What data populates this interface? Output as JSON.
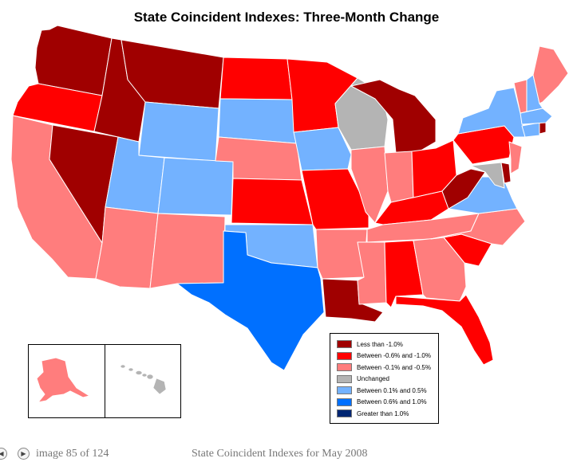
{
  "title": "State Coincident Indexes: Three-Month Change",
  "legend": [
    {
      "label": "Less than -1.0%",
      "color": "#a00000"
    },
    {
      "label": "Between -0.6% and -1.0%",
      "color": "#ff0000"
    },
    {
      "label": "Between -0.1% and -0.5%",
      "color": "#ff7d7d"
    },
    {
      "label": "Unchanged",
      "color": "#b4b4b4"
    },
    {
      "label": "Between 0.1% and 0.5%",
      "color": "#73b2ff"
    },
    {
      "label": "Between 0.6% and 1.0%",
      "color": "#0070ff"
    },
    {
      "label": "Greater than 1.0%",
      "color": "#002673"
    }
  ],
  "states": {
    "WA": 0,
    "OR": 1,
    "CA": 2,
    "NV": 0,
    "ID": 0,
    "MT": 0,
    "WY": 4,
    "UT": 4,
    "CO": 4,
    "AZ": 2,
    "NM": 2,
    "ND": 1,
    "SD": 4,
    "NE": 2,
    "KS": 1,
    "OK": 4,
    "TX": 5,
    "MN": 1,
    "IA": 4,
    "MO": 1,
    "AR": 2,
    "LA": 0,
    "WI": 3,
    "IL": 2,
    "MI": 0,
    "IN": 2,
    "OH": 1,
    "KY": 1,
    "TN": 2,
    "MS": 2,
    "AL": 1,
    "GA": 2,
    "FL": 1,
    "SC": 1,
    "NC": 2,
    "VA": 4,
    "WV": 0,
    "MD": 3,
    "DE": 0,
    "PA": 1,
    "NJ": 2,
    "NY": 4,
    "CT": 4,
    "RI": 0,
    "MA": 4,
    "VT": 2,
    "NH": 4,
    "ME": 2,
    "AK": 2,
    "HI": 3
  },
  "pager": {
    "text": "image 85 of 124",
    "prev": "◀",
    "next": "▶"
  },
  "caption": "State Coincident Indexes for May 2008"
}
